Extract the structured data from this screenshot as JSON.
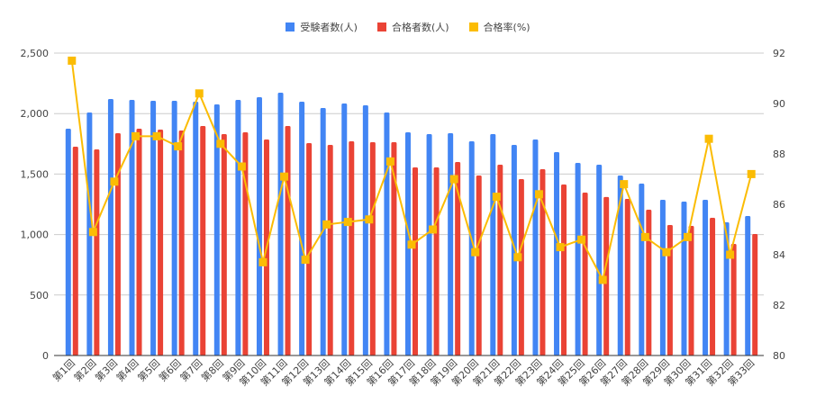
{
  "chart_data": {
    "type": "bar+line",
    "categories": [
      "第1回",
      "第2回",
      "第3回",
      "第4回",
      "第5回",
      "第6回",
      "第7回",
      "第8回",
      "第9回",
      "第10回",
      "第11回",
      "第12回",
      "第13回",
      "第14回",
      "第15回",
      "第16回",
      "第17回",
      "第18回",
      "第19回",
      "第20回",
      "第21回",
      "第22回",
      "第23回",
      "第24回",
      "第25回",
      "第26回",
      "第27回",
      "第28回",
      "第29回",
      "第30回",
      "第31回",
      "第32回",
      "第33回"
    ],
    "series": [
      {
        "name": "受験者数(人)",
        "type": "bar",
        "axis": "left",
        "color": "#4285f4",
        "values": [
          1875,
          2009,
          2121,
          2113,
          2106,
          2106,
          2098,
          2076,
          2113,
          2135,
          2173,
          2098,
          2046,
          2083,
          2068,
          2009,
          1845,
          1830,
          1838,
          1771,
          1830,
          1741,
          1786,
          1682,
          1592,
          1577,
          1488,
          1421,
          1287,
          1272,
          1287,
          1101,
          1153
        ]
      },
      {
        "name": "合格者数(人)",
        "type": "bar",
        "axis": "left",
        "color": "#ea4335",
        "values": [
          1726,
          1704,
          1838,
          1875,
          1868,
          1860,
          1897,
          1830,
          1845,
          1786,
          1897,
          1756,
          1741,
          1771,
          1763,
          1763,
          1555,
          1555,
          1600,
          1488,
          1577,
          1458,
          1540,
          1414,
          1347,
          1310,
          1295,
          1205,
          1079,
          1071,
          1138,
          923,
          1004
        ]
      },
      {
        "name": "合格率(%)",
        "type": "line",
        "axis": "right",
        "color": "#fbbc04",
        "values": [
          91.7,
          84.9,
          86.9,
          88.7,
          88.7,
          88.3,
          90.4,
          88.4,
          87.5,
          83.7,
          87.1,
          83.8,
          85.2,
          85.3,
          85.4,
          87.7,
          84.4,
          85.0,
          87.0,
          84.1,
          86.3,
          83.9,
          86.4,
          84.3,
          84.6,
          83.0,
          86.8,
          84.7,
          84.1,
          84.7,
          88.6,
          84.0,
          87.2
        ]
      }
    ],
    "left_axis": {
      "ylim": [
        0,
        2500
      ],
      "ticks": [
        "0",
        "500",
        "1,000",
        "1,500",
        "2,000",
        "2,500"
      ]
    },
    "right_axis": {
      "ylim": [
        80,
        92
      ],
      "ticks": [
        "80",
        "82",
        "84",
        "86",
        "88",
        "90",
        "92"
      ]
    },
    "grid": true,
    "legend": "top"
  }
}
